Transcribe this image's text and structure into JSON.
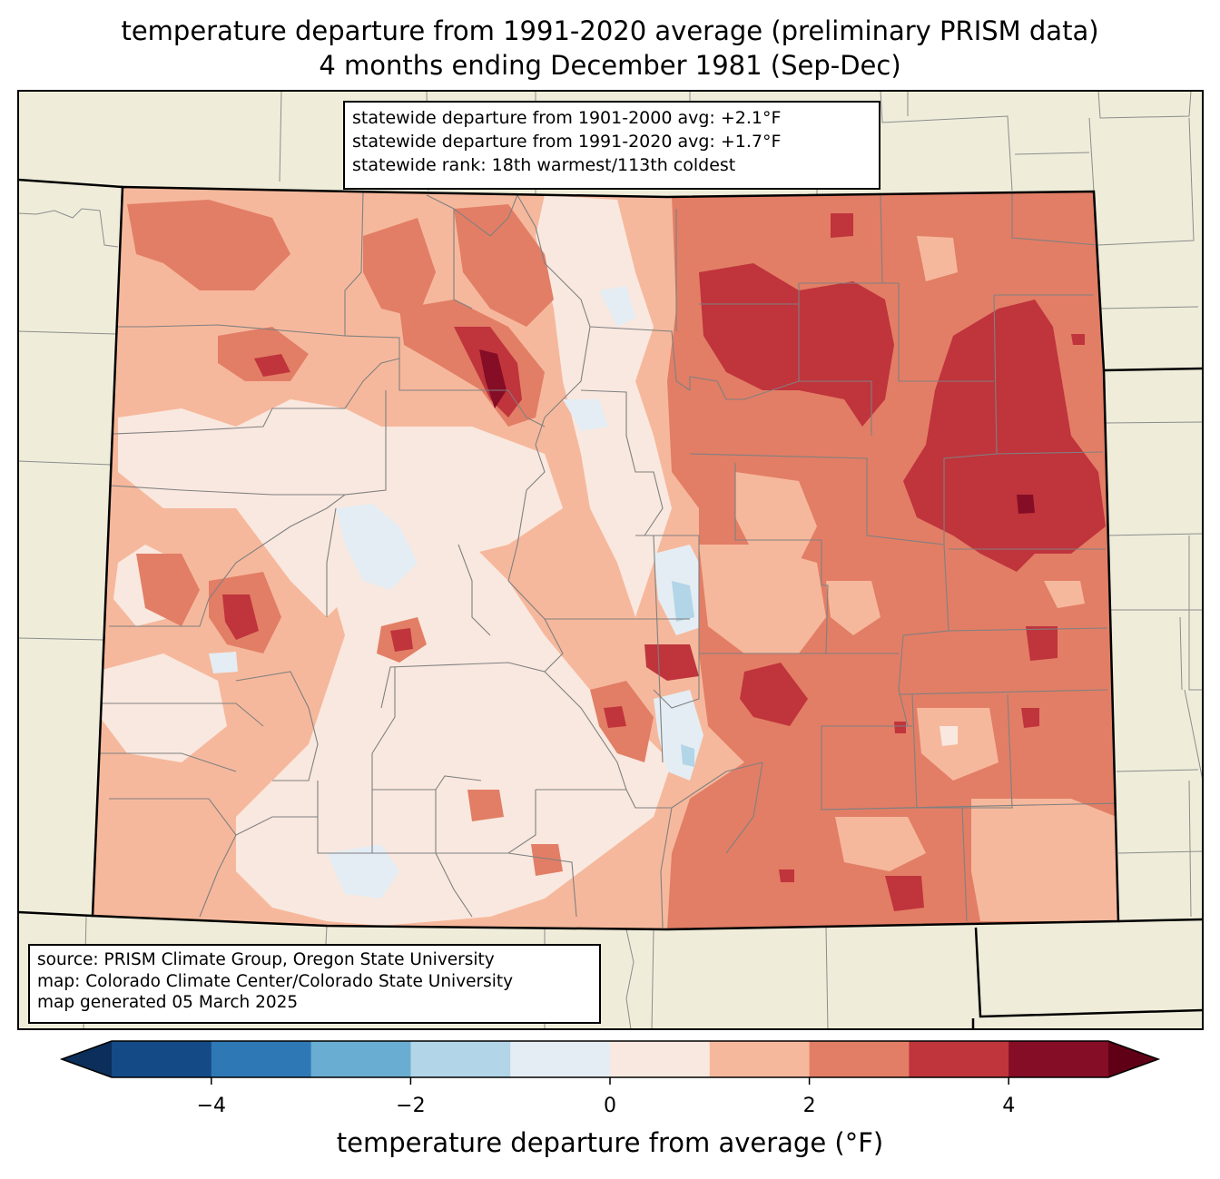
{
  "title": {
    "line1": "temperature departure from 1991-2020 average (preliminary PRISM data)",
    "line2": "4 months ending December 1981 (Sep-Dec)"
  },
  "stats_box": {
    "line1": "statewide departure from 1901-2000 avg: +2.1°F",
    "line2": "statewide departure from 1991-2020 avg: +1.7°F",
    "line3": "statewide rank: 18th warmest/113th coldest"
  },
  "credits_box": {
    "line1": "source: PRISM Climate Group, Oregon State University",
    "line2": "map: Colorado Climate Center/Colorado State University",
    "line3": "map generated 05 March 2025"
  },
  "colorbar": {
    "label": "temperature departure from average (°F)",
    "ticks": [
      "−4",
      "−2",
      "0",
      "2",
      "4"
    ],
    "tick_values": [
      -4,
      -2,
      0,
      2,
      4
    ],
    "range": [
      -5,
      5
    ],
    "bins": [
      {
        "from": -5,
        "to": -4,
        "color": "#144b87"
      },
      {
        "from": -4,
        "to": -3,
        "color": "#2f78b6"
      },
      {
        "from": -3,
        "to": -2,
        "color": "#6aadd2"
      },
      {
        "from": -2,
        "to": -1,
        "color": "#b2d5e7"
      },
      {
        "from": -1,
        "to": 0,
        "color": "#e4edf3"
      },
      {
        "from": 0,
        "to": 1,
        "color": "#f9e8df"
      },
      {
        "from": 1,
        "to": 2,
        "color": "#f6b89c"
      },
      {
        "from": 2,
        "to": 3,
        "color": "#e27e66"
      },
      {
        "from": 3,
        "to": 4,
        "color": "#c0343c"
      },
      {
        "from": 4,
        "to": 5,
        "color": "#850d26"
      }
    ],
    "under_color": "#0b2f5a",
    "over_color": "#5f0016"
  },
  "map_colors": {
    "land_background": "#efedda",
    "state_border": "#000000",
    "county_border": "#808080"
  }
}
